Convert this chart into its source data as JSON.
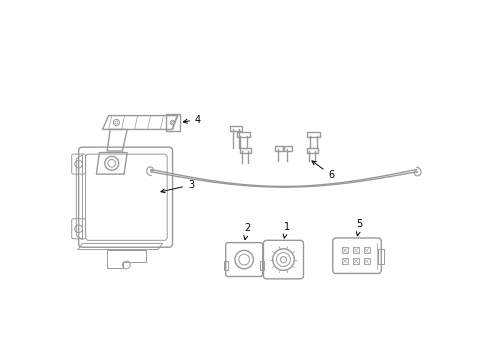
{
  "background_color": "#ffffff",
  "line_color": "#999999",
  "text_color": "#000000",
  "lw": 1.0,
  "fig_w": 4.9,
  "fig_h": 3.6,
  "dpi": 100
}
